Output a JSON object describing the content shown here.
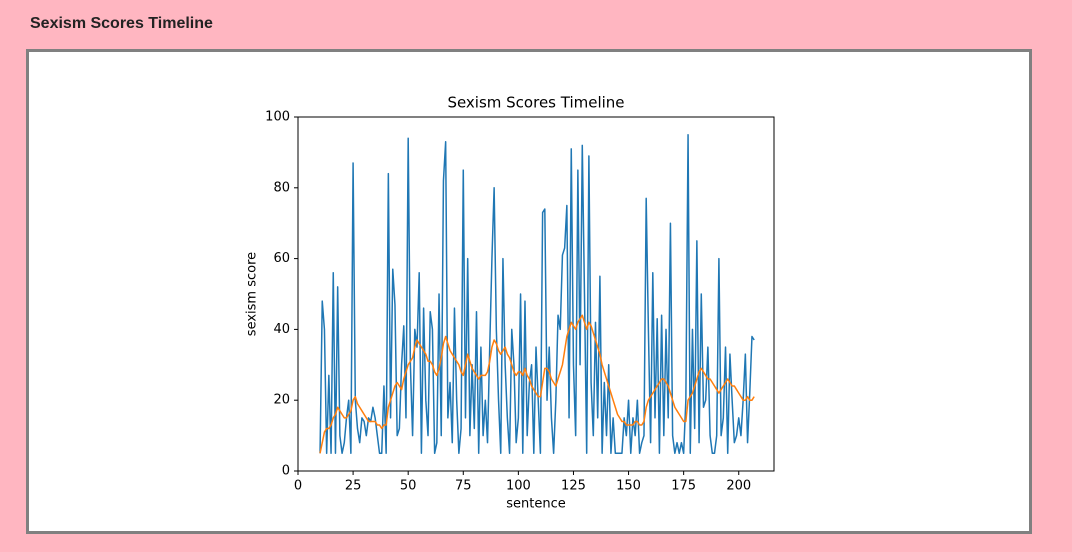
{
  "header": {
    "title": "Sexism Scores Timeline"
  },
  "chart_data": {
    "type": "line",
    "title": "Sexism Scores Timeline",
    "x_label": "sentence",
    "y_label": "sexism score",
    "x": [
      10,
      11,
      12,
      13,
      14,
      15,
      16,
      17,
      18,
      19,
      20,
      21,
      22,
      23,
      24,
      25,
      26,
      27,
      28,
      29,
      30,
      31,
      32,
      33,
      34,
      35,
      36,
      37,
      38,
      39,
      40,
      41,
      42,
      43,
      44,
      45,
      46,
      47,
      48,
      49,
      50,
      51,
      52,
      53,
      54,
      55,
      56,
      57,
      58,
      59,
      60,
      61,
      62,
      63,
      64,
      65,
      66,
      67,
      68,
      69,
      70,
      71,
      72,
      73,
      74,
      75,
      76,
      77,
      78,
      79,
      80,
      81,
      82,
      83,
      84,
      85,
      86,
      87,
      88,
      89,
      90,
      91,
      92,
      93,
      94,
      95,
      96,
      97,
      98,
      99,
      100,
      101,
      102,
      103,
      104,
      105,
      106,
      107,
      108,
      109,
      110,
      111,
      112,
      113,
      114,
      115,
      116,
      117,
      118,
      119,
      120,
      121,
      122,
      123,
      124,
      125,
      126,
      127,
      128,
      129,
      130,
      131,
      132,
      133,
      134,
      135,
      136,
      137,
      138,
      139,
      140,
      141,
      142,
      143,
      144,
      145,
      146,
      147,
      148,
      149,
      150,
      151,
      152,
      153,
      154,
      155,
      156,
      157,
      158,
      159,
      160,
      161,
      162,
      163,
      164,
      165,
      166,
      167,
      168,
      169,
      170,
      171,
      172,
      173,
      174,
      175,
      176,
      177,
      178,
      179,
      180,
      181,
      182,
      183,
      184,
      185,
      186,
      187,
      188,
      189,
      190,
      191,
      192,
      193,
      194,
      195,
      196,
      197,
      198,
      199,
      200,
      201,
      202,
      203,
      204,
      205,
      206,
      207
    ],
    "series": [
      {
        "color": "#1f77b4",
        "values": [
          5,
          48,
          40,
          5,
          27,
          5,
          56,
          5,
          52,
          10,
          5,
          8,
          15,
          20,
          5,
          87,
          20,
          12,
          8,
          15,
          14,
          10,
          15,
          14,
          18,
          15,
          10,
          5,
          5,
          24,
          5,
          84,
          15,
          57,
          47,
          10,
          12,
          30,
          41,
          15,
          94,
          30,
          10,
          40,
          35,
          56,
          5,
          46,
          20,
          10,
          45,
          40,
          5,
          8,
          50,
          10,
          82,
          93,
          15,
          25,
          8,
          46,
          20,
          5,
          12,
          85,
          15,
          60,
          10,
          30,
          12,
          45,
          5,
          35,
          10,
          20,
          8,
          35,
          60,
          80,
          40,
          20,
          5,
          60,
          30,
          15,
          5,
          40,
          30,
          8,
          15,
          50,
          5,
          48,
          10,
          25,
          30,
          5,
          35,
          20,
          5,
          73,
          74,
          20,
          35,
          15,
          5,
          20,
          44,
          40,
          61,
          63,
          75,
          15,
          91,
          30,
          10,
          85,
          30,
          92,
          50,
          5,
          89,
          25,
          10,
          42,
          15,
          55,
          5,
          25,
          10,
          30,
          5,
          15,
          5,
          5,
          5,
          5,
          15,
          10,
          20,
          5,
          15,
          10,
          20,
          5,
          8,
          10,
          77,
          40,
          8,
          56,
          15,
          43,
          5,
          44,
          10,
          40,
          15,
          70,
          10,
          5,
          8,
          5,
          8,
          5,
          20,
          95,
          5,
          40,
          12,
          65,
          8,
          50,
          18,
          20,
          35,
          10,
          5,
          5,
          10,
          60,
          10,
          15,
          35,
          5,
          33,
          20,
          8,
          10,
          15,
          10,
          20,
          33,
          8,
          22,
          38,
          37
        ]
      },
      {
        "color": "#ff7f0e",
        "values": [
          5,
          8,
          11,
          12,
          12,
          13,
          15,
          16,
          18,
          17,
          16,
          15,
          15,
          16,
          17,
          20,
          21,
          19,
          18,
          17,
          16,
          15,
          14,
          14,
          14,
          14,
          13,
          13,
          12,
          13,
          13,
          18,
          20,
          22,
          24,
          25,
          24,
          23,
          26,
          28,
          30,
          31,
          32,
          35,
          37,
          36,
          35,
          34,
          33,
          31,
          31,
          30,
          28,
          27,
          29,
          32,
          36,
          38,
          36,
          34,
          33,
          32,
          31,
          30,
          28,
          27,
          30,
          33,
          31,
          29,
          28,
          27,
          26,
          27,
          27,
          27,
          28,
          31,
          35,
          37,
          36,
          34,
          33,
          34,
          35,
          33,
          32,
          30,
          28,
          27,
          28,
          28,
          27,
          29,
          27,
          26,
          24,
          23,
          22,
          21,
          21,
          25,
          29,
          29,
          28,
          26,
          25,
          24,
          26,
          28,
          30,
          34,
          38,
          40,
          42,
          41,
          40,
          42,
          43,
          44,
          42,
          40,
          42,
          41,
          39,
          37,
          35,
          33,
          30,
          28,
          26,
          24,
          22,
          20,
          18,
          16,
          15,
          14,
          14,
          13,
          13,
          13,
          13,
          14,
          14,
          13,
          13,
          14,
          18,
          20,
          21,
          22,
          23,
          24,
          25,
          26,
          26,
          25,
          24,
          22,
          20,
          18,
          17,
          16,
          15,
          14,
          14,
          20,
          21,
          22,
          24,
          26,
          28,
          29,
          28,
          27,
          26,
          26,
          25,
          24,
          23,
          22,
          23,
          24,
          25,
          26,
          25,
          24,
          24,
          23,
          22,
          21,
          20,
          20,
          21,
          20,
          20,
          21
        ]
      }
    ],
    "xlim": [
      0,
      216
    ],
    "ylim": [
      0,
      100
    ],
    "xticks": [
      0,
      25,
      50,
      75,
      100,
      125,
      150,
      175,
      200
    ],
    "yticks": [
      0,
      20,
      40,
      60,
      80,
      100
    ]
  }
}
